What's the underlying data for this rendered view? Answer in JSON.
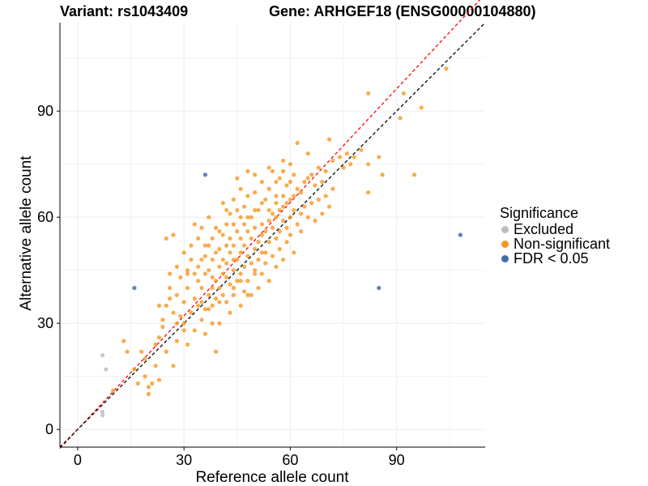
{
  "header": {
    "variant_text": "Variant: rs1043409",
    "gene_text": "Gene: ARHGEF18 (ENSG00000104880)"
  },
  "legend": {
    "title": "Significance",
    "items": [
      {
        "label": "Excluded",
        "color": "#bdbdbd"
      },
      {
        "label": "Non-significant",
        "color": "#f7951d"
      },
      {
        "label": "FDR < 0.05",
        "color": "#3f6fa8"
      }
    ]
  },
  "chart_data": {
    "type": "scatter",
    "xlabel": "Reference allele count",
    "ylabel": "Alternative allele count",
    "xlim": [
      -5,
      115
    ],
    "ylim": [
      -5,
      115
    ],
    "xticks": [
      0,
      30,
      60,
      90
    ],
    "yticks": [
      0,
      30,
      60,
      90
    ],
    "grid": true,
    "colors": {
      "Excluded": "#bdbdbd",
      "Non-significant": "#f7951d",
      "FDR < 0.05": "#3f6fa8",
      "ref_line_red": "#ff0000",
      "ref_line_black": "#000000"
    },
    "reference_lines": [
      {
        "color": "#ff0000",
        "style": "dashed",
        "slope": 1.07,
        "intercept": 0
      },
      {
        "color": "#000000",
        "style": "dashed",
        "slope": 1.0,
        "intercept": 0
      }
    ],
    "series": [
      {
        "name": "Excluded",
        "points": [
          [
            7,
            21
          ],
          [
            8,
            17
          ],
          [
            7,
            5
          ],
          [
            7,
            4
          ]
        ]
      },
      {
        "name": "FDR < 0.05",
        "points": [
          [
            36,
            72
          ],
          [
            16,
            40
          ],
          [
            85,
            40
          ],
          [
            108,
            55
          ]
        ]
      },
      {
        "name": "Non-significant",
        "points": [
          [
            10,
            11
          ],
          [
            13,
            25
          ],
          [
            14,
            22
          ],
          [
            16,
            17
          ],
          [
            17,
            13
          ],
          [
            18,
            22
          ],
          [
            19,
            20
          ],
          [
            19,
            15
          ],
          [
            20,
            12
          ],
          [
            20,
            10
          ],
          [
            21,
            13
          ],
          [
            22,
            24
          ],
          [
            22,
            18
          ],
          [
            23,
            14
          ],
          [
            23,
            26
          ],
          [
            23,
            35
          ],
          [
            24,
            31
          ],
          [
            24,
            29
          ],
          [
            25,
            35
          ],
          [
            25,
            22
          ],
          [
            25,
            54
          ],
          [
            26,
            40
          ],
          [
            26,
            37
          ],
          [
            26,
            44
          ],
          [
            27,
            33
          ],
          [
            27,
            55
          ],
          [
            27,
            18
          ],
          [
            28,
            30
          ],
          [
            28,
            38
          ],
          [
            28,
            25
          ],
          [
            29,
            32
          ],
          [
            29,
            43
          ],
          [
            30,
            30
          ],
          [
            30,
            36
          ],
          [
            30,
            50
          ],
          [
            30,
            28
          ],
          [
            31,
            40
          ],
          [
            31,
            45
          ],
          [
            31,
            24
          ],
          [
            32,
            48
          ],
          [
            32,
            33
          ],
          [
            32,
            52
          ],
          [
            33,
            44
          ],
          [
            33,
            37
          ],
          [
            33,
            28
          ],
          [
            34,
            42
          ],
          [
            34,
            46
          ],
          [
            34,
            54
          ],
          [
            35,
            40
          ],
          [
            35,
            36
          ],
          [
            35,
            57
          ],
          [
            35,
            31
          ],
          [
            36,
            44
          ],
          [
            36,
            49
          ],
          [
            36,
            27
          ],
          [
            37,
            38
          ],
          [
            37,
            52
          ],
          [
            37,
            45
          ],
          [
            37,
            60
          ],
          [
            38,
            35
          ],
          [
            38,
            48
          ],
          [
            38,
            54
          ],
          [
            38,
            43
          ],
          [
            39,
            42
          ],
          [
            39,
            57
          ],
          [
            39,
            37
          ],
          [
            39,
            22
          ],
          [
            40,
            40
          ],
          [
            40,
            46
          ],
          [
            40,
            51
          ],
          [
            40,
            30
          ],
          [
            41,
            44
          ],
          [
            41,
            55
          ],
          [
            41,
            38
          ],
          [
            41,
            64
          ],
          [
            42,
            36
          ],
          [
            42,
            47
          ],
          [
            42,
            58
          ],
          [
            42,
            43
          ],
          [
            43,
            50
          ],
          [
            43,
            41
          ],
          [
            43,
            61
          ],
          [
            43,
            33
          ],
          [
            44,
            45
          ],
          [
            44,
            52
          ],
          [
            44,
            65
          ],
          [
            44,
            38
          ],
          [
            45,
            48
          ],
          [
            45,
            56
          ],
          [
            45,
            42
          ],
          [
            45,
            71
          ],
          [
            46,
            44
          ],
          [
            46,
            50
          ],
          [
            46,
            60
          ],
          [
            46,
            35
          ],
          [
            47,
            52
          ],
          [
            47,
            46
          ],
          [
            47,
            63
          ],
          [
            47,
            39
          ],
          [
            48,
            49
          ],
          [
            48,
            56
          ],
          [
            48,
            73
          ],
          [
            48,
            42
          ],
          [
            49,
            54
          ],
          [
            49,
            47
          ],
          [
            49,
            60
          ],
          [
            49,
            38
          ],
          [
            50,
            51
          ],
          [
            50,
            57
          ],
          [
            50,
            67
          ],
          [
            50,
            45
          ],
          [
            51,
            53
          ],
          [
            51,
            48
          ],
          [
            51,
            62
          ],
          [
            51,
            40
          ],
          [
            52,
            55
          ],
          [
            52,
            58
          ],
          [
            52,
            70
          ],
          [
            52,
            44
          ],
          [
            53,
            56
          ],
          [
            53,
            50
          ],
          [
            53,
            65
          ],
          [
            53,
            47
          ],
          [
            54,
            59
          ],
          [
            54,
            53
          ],
          [
            54,
            68
          ],
          [
            54,
            42
          ],
          [
            55,
            57
          ],
          [
            55,
            61
          ],
          [
            55,
            73
          ],
          [
            55,
            49
          ],
          [
            56,
            60
          ],
          [
            56,
            54
          ],
          [
            56,
            66
          ],
          [
            56,
            46
          ],
          [
            57,
            62
          ],
          [
            57,
            56
          ],
          [
            57,
            71
          ],
          [
            57,
            51
          ],
          [
            58,
            63
          ],
          [
            58,
            59
          ],
          [
            58,
            73
          ],
          [
            58,
            48
          ],
          [
            59,
            64
          ],
          [
            59,
            57
          ],
          [
            59,
            69
          ],
          [
            59,
            53
          ],
          [
            60,
            65
          ],
          [
            60,
            60
          ],
          [
            60,
            75
          ],
          [
            60,
            55
          ],
          [
            61,
            66
          ],
          [
            61,
            62
          ],
          [
            61,
            72
          ],
          [
            61,
            50
          ],
          [
            62,
            68
          ],
          [
            62,
            58
          ],
          [
            62,
            81
          ],
          [
            63,
            67
          ],
          [
            63,
            61
          ],
          [
            63,
            56
          ],
          [
            64,
            70
          ],
          [
            64,
            63
          ],
          [
            65,
            71
          ],
          [
            65,
            60
          ],
          [
            65,
            78
          ],
          [
            66,
            72
          ],
          [
            66,
            64
          ],
          [
            67,
            69
          ],
          [
            67,
            59
          ],
          [
            68,
            74
          ],
          [
            68,
            65
          ],
          [
            69,
            70
          ],
          [
            69,
            61
          ],
          [
            70,
            73
          ],
          [
            70,
            66
          ],
          [
            71,
            82
          ],
          [
            71,
            63
          ],
          [
            72,
            76
          ],
          [
            72,
            68
          ],
          [
            74,
            77
          ],
          [
            75,
            74
          ],
          [
            76,
            78
          ],
          [
            77,
            75
          ],
          [
            78,
            77
          ],
          [
            80,
            79
          ],
          [
            82,
            67
          ],
          [
            82,
            95
          ],
          [
            82,
            75
          ],
          [
            85,
            77
          ],
          [
            86,
            72
          ],
          [
            91,
            88
          ],
          [
            92,
            95
          ],
          [
            95,
            72
          ],
          [
            97,
            91
          ],
          [
            104,
            102
          ],
          [
            28,
            46
          ],
          [
            31,
            44
          ],
          [
            34,
            35
          ],
          [
            36,
            52
          ],
          [
            38,
            30
          ],
          [
            40,
            56
          ],
          [
            42,
            62
          ],
          [
            44,
            58
          ],
          [
            46,
            68
          ],
          [
            48,
            66
          ],
          [
            50,
            72
          ],
          [
            52,
            64
          ],
          [
            54,
            74
          ],
          [
            56,
            70
          ],
          [
            58,
            76
          ],
          [
            60,
            70
          ],
          [
            44,
            48
          ],
          [
            46,
            54
          ],
          [
            48,
            60
          ],
          [
            50,
            62
          ],
          [
            52,
            50
          ],
          [
            54,
            62
          ],
          [
            56,
            64
          ],
          [
            58,
            66
          ],
          [
            36,
            34
          ],
          [
            38,
            40
          ],
          [
            40,
            36
          ],
          [
            42,
            52
          ],
          [
            44,
            40
          ],
          [
            46,
            42
          ],
          [
            48,
            38
          ],
          [
            50,
            44
          ],
          [
            33,
            58
          ],
          [
            35,
            48
          ],
          [
            37,
            34
          ],
          [
            39,
            50
          ],
          [
            41,
            48
          ],
          [
            43,
            54
          ],
          [
            45,
            62
          ],
          [
            47,
            58
          ]
        ]
      }
    ]
  }
}
